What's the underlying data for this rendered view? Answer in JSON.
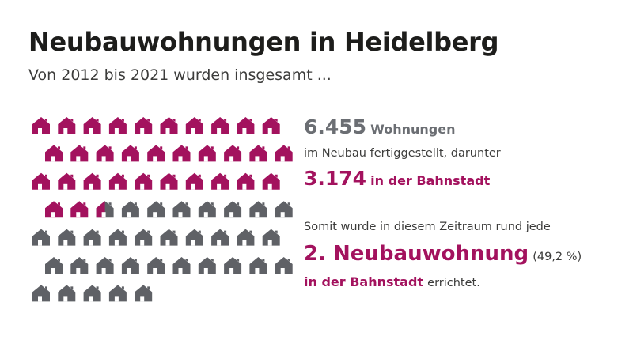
{
  "header": {
    "title": "Neubauwohnungen in Heidelberg",
    "subtitle": "Von 2012 bis 2021 wurden insgesamt ..."
  },
  "stats": {
    "total_number": "6.455",
    "total_label": "Wohnungen",
    "total_sub": "im Neubau fertiggestellt, darunter",
    "bahnstadt_number": "3.174",
    "bahnstadt_label": "in der Bahnstadt",
    "conclusion_intro": "Somit wurde in diesem Zeitraum rund jede",
    "conclusion_highlight": "2. Neubauwohnung",
    "conclusion_pct": "(49,2 %)",
    "conclusion_place": "in der Bahnstadt",
    "conclusion_verb": "errichtet."
  },
  "colors": {
    "bahnstadt": "#a3125e",
    "other": "#5f6166"
  },
  "chart_data": {
    "type": "pictogram",
    "total_icons": 65,
    "bahnstadt_icons": 32.5,
    "row_sizes": [
      10,
      10,
      10,
      10,
      10,
      10,
      5
    ],
    "series": [
      {
        "name": "in der Bahnstadt",
        "value": 3174
      },
      {
        "name": "Wohnungen",
        "value": 6455
      }
    ]
  }
}
